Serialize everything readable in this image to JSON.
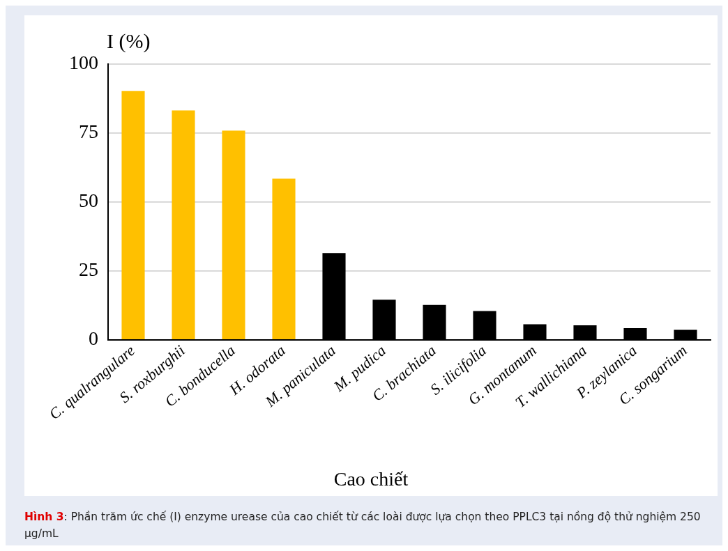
{
  "chart_data": {
    "type": "bar",
    "ylabel": "I (%)",
    "xlabel": "Cao chiết",
    "categories": [
      "C. qualrangulare",
      "S. roxburghii",
      "C. bonducella",
      "H. odorata",
      "M. paniculata",
      "M. pudica",
      "C. brachiata",
      "S. ilicifolia",
      "G. montanum",
      "T. wallichiana",
      "P. zeylanica",
      "C. songarium"
    ],
    "values": [
      90.2,
      83.2,
      75.9,
      58.5,
      31.5,
      14.6,
      12.7,
      10.5,
      5.7,
      5.3,
      4.3,
      3.7
    ],
    "colors": [
      "#ffc000",
      "#ffc000",
      "#ffc000",
      "#ffc000",
      "#000000",
      "#000000",
      "#000000",
      "#000000",
      "#000000",
      "#000000",
      "#000000",
      "#000000"
    ],
    "ylim": [
      0,
      100
    ],
    "yticks": [
      0,
      25,
      50,
      75,
      100
    ],
    "grid": "y",
    "legend": false,
    "annotations": [
      "Hình 3: Phần trăm ức chế (I) enzyme urease của cao chiết từ các loài được lựa chọn theo PPLC3 tại nồng độ thử nghiệm 250 µg/mL"
    ]
  }
}
